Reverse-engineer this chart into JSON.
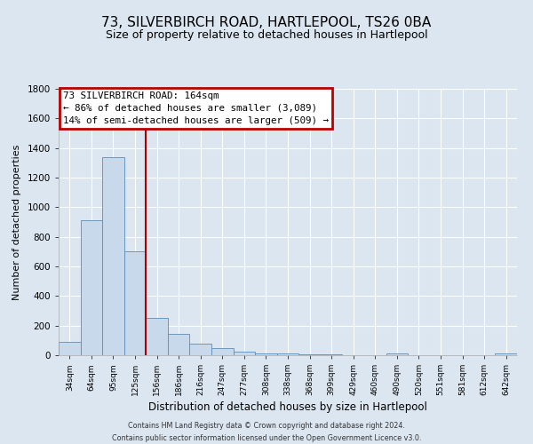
{
  "title": "73, SILVERBIRCH ROAD, HARTLEPOOL, TS26 0BA",
  "subtitle": "Size of property relative to detached houses in Hartlepool",
  "xlabel": "Distribution of detached houses by size in Hartlepool",
  "ylabel": "Number of detached properties",
  "bar_labels": [
    "34sqm",
    "64sqm",
    "95sqm",
    "125sqm",
    "156sqm",
    "186sqm",
    "216sqm",
    "247sqm",
    "277sqm",
    "308sqm",
    "338sqm",
    "368sqm",
    "399sqm",
    "429sqm",
    "460sqm",
    "490sqm",
    "520sqm",
    "551sqm",
    "581sqm",
    "612sqm",
    "642sqm"
  ],
  "bar_values": [
    90,
    910,
    1340,
    700,
    250,
    145,
    80,
    50,
    25,
    15,
    10,
    8,
    5,
    3,
    2,
    15,
    1,
    1,
    1,
    1,
    10
  ],
  "bar_color": "#c9d9ec",
  "bar_edge_color": "#5b8db8",
  "vline_x": 4,
  "vline_color": "#aa0000",
  "ylim": [
    0,
    1800
  ],
  "yticks": [
    0,
    200,
    400,
    600,
    800,
    1000,
    1200,
    1400,
    1600,
    1800
  ],
  "annotation_title": "73 SILVERBIRCH ROAD: 164sqm",
  "annotation_line1": "← 86% of detached houses are smaller (3,089)",
  "annotation_line2": "14% of semi-detached houses are larger (509) →",
  "annotation_box_color": "#ffffff",
  "annotation_box_edge_color": "#bb0000",
  "footer_line1": "Contains HM Land Registry data © Crown copyright and database right 2024.",
  "footer_line2": "Contains public sector information licensed under the Open Government Licence v3.0.",
  "background_color": "#dce6f0",
  "plot_bg_color": "#dce6f0",
  "grid_color": "#ffffff",
  "title_fontsize": 11,
  "subtitle_fontsize": 9
}
